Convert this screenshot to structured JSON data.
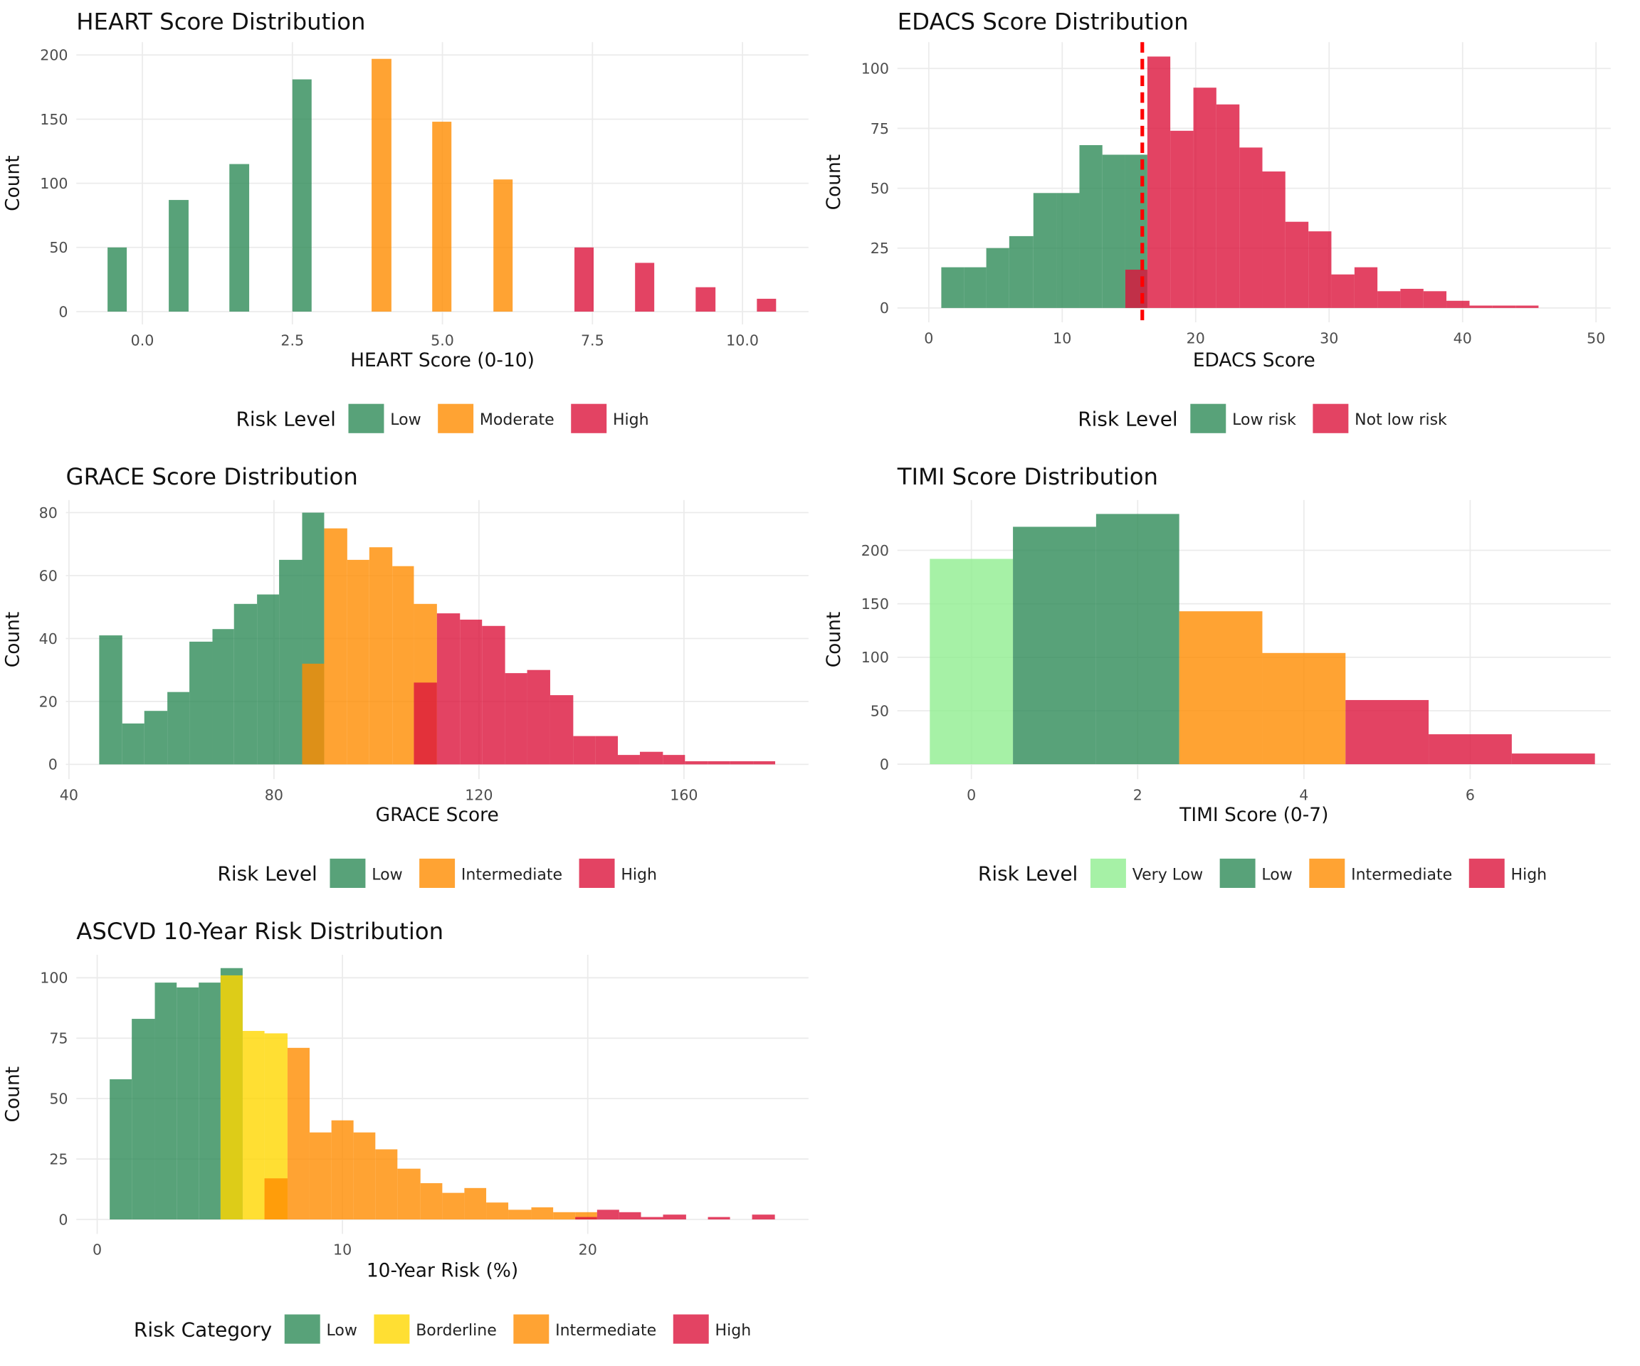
{
  "chart_data": [
    {
      "type": "histogram",
      "title": "HEART Score Distribution",
      "x_label": "HEART Score (0-10)",
      "y_label": "Count",
      "legend_title": "Risk Level",
      "legend": "bottom",
      "grid": true,
      "alpha": 0.8,
      "xlim": [
        -1.1,
        11.1
      ],
      "ylim": [
        -10,
        210
      ],
      "xticks": [
        {
          "value": 0,
          "label": "0.0"
        },
        2.5,
        {
          "value": 5,
          "label": "5.0"
        },
        7.5,
        {
          "value": 10,
          "label": "10.0"
        }
      ],
      "yticks": [
        0,
        50,
        100,
        150,
        200
      ],
      "series": [
        {
          "name": "Low",
          "color": "#2E8B57",
          "bins": [
            -0.58,
            -0.26,
            0.44,
            0.77,
            1.45,
            1.78,
            2.5,
            2.82
          ],
          "values": [
            50,
            0,
            87,
            0,
            115,
            0,
            181
          ]
        },
        {
          "name": "Moderate",
          "color": "#FF8C00",
          "bins": [
            3.82,
            4.15,
            4.83,
            5.15,
            5.85,
            6.17
          ],
          "values": [
            197,
            0,
            148,
            0,
            103
          ]
        },
        {
          "name": "High",
          "color": "#DC143C",
          "bins": [
            7.2,
            7.52,
            8.21,
            8.53,
            9.22,
            9.55,
            10.24,
            10.56
          ],
          "values": [
            50,
            0,
            38,
            0,
            19,
            0,
            10
          ]
        }
      ]
    },
    {
      "type": "histogram",
      "title": "EDACS Score Distribution",
      "x_label": "EDACS Score",
      "y_label": "Count",
      "legend_title": "Risk Level",
      "legend": "bottom",
      "grid": true,
      "alpha": 0.8,
      "xlim": [
        -2.35,
        51.1
      ],
      "ylim": [
        -6,
        111
      ],
      "xticks": [
        0,
        10,
        20,
        30,
        40,
        50
      ],
      "yticks": [
        0,
        25,
        50,
        75,
        100
      ],
      "vline": 16,
      "vline_color": "#FF0000",
      "series": [
        {
          "name": "Low risk",
          "color": "#2E8B57",
          "bins": [
            0.94,
            2.66,
            4.31,
            6.03,
            7.84,
            9.56,
            11.29,
            13.01,
            14.73,
            16.38
          ],
          "values": [
            17,
            17,
            25,
            30,
            48,
            48,
            68,
            64,
            64
          ]
        },
        {
          "name": "Not low risk",
          "color": "#DC143C",
          "bins": [
            14.73,
            16.38,
            18.1,
            19.83,
            21.55,
            23.28,
            25.0,
            26.72,
            28.45,
            30.17,
            31.9,
            33.62,
            35.34,
            37.07,
            38.79,
            40.52,
            42.24,
            43.97,
            45.69
          ],
          "values": [
            16,
            105,
            74,
            92,
            85,
            67,
            57,
            36,
            32,
            14,
            17,
            7,
            8,
            7,
            3,
            1,
            1,
            1
          ]
        }
      ]
    },
    {
      "type": "histogram",
      "title": "GRACE Score Distribution",
      "x_label": "GRACE Score",
      "y_label": "Count",
      "legend_title": "Risk Level",
      "legend": "bottom",
      "grid": true,
      "alpha": 0.8,
      "xlim": [
        39.4,
        184.3
      ],
      "ylim": [
        -4.7,
        84
      ],
      "xticks": [
        40,
        80,
        120,
        160
      ],
      "yticks": [
        0,
        20,
        40,
        60,
        80
      ],
      "series": [
        {
          "name": "Low",
          "color": "#2E8B57",
          "bins": [
            45.9,
            50.4,
            54.7,
            59.2,
            63.5,
            68.0,
            72.2,
            76.7,
            81.0,
            85.5,
            89.8
          ],
          "values": [
            41,
            13,
            17,
            23,
            39,
            43,
            51,
            54,
            65,
            80
          ]
        },
        {
          "name": "Intermediate",
          "color": "#FF8C00",
          "bins": [
            85.5,
            89.8,
            94.3,
            98.6,
            103.1,
            107.3,
            111.8
          ],
          "values": [
            32,
            75,
            65,
            69,
            63,
            51
          ]
        },
        {
          "name": "High",
          "color": "#DC143C",
          "bins": [
            107.3,
            111.8,
            116.3,
            120.6,
            125.1,
            129.4,
            133.9,
            138.4,
            142.7,
            147.1,
            151.4,
            155.9,
            160.2,
            164.7,
            169.0,
            173.5,
            177.8
          ],
          "values": [
            26,
            48,
            46,
            44,
            29,
            30,
            22,
            9,
            9,
            3,
            4,
            3,
            1,
            1,
            1,
            1
          ]
        }
      ]
    },
    {
      "type": "histogram",
      "title": "TIMI Score Distribution",
      "x_label": "TIMI Score (0-7)",
      "y_label": "Count",
      "legend_title": "Risk Level",
      "legend": "bottom",
      "grid": true,
      "alpha": 0.8,
      "xlim": [
        -0.89,
        7.69
      ],
      "ylim": [
        -14,
        247
      ],
      "xticks": [
        0,
        2,
        4,
        6
      ],
      "yticks": [
        0,
        50,
        100,
        150,
        200
      ],
      "series": [
        {
          "name": "Very Low",
          "color": "#90EE90",
          "bins": [
            -0.5,
            0.5
          ],
          "values": [
            192
          ]
        },
        {
          "name": "Low",
          "color": "#2E8B57",
          "bins": [
            0.5,
            1.5,
            2.5
          ],
          "values": [
            222,
            234
          ]
        },
        {
          "name": "Intermediate",
          "color": "#FF8C00",
          "bins": [
            2.5,
            3.5,
            4.5
          ],
          "values": [
            143,
            104
          ]
        },
        {
          "name": "High",
          "color": "#DC143C",
          "bins": [
            4.5,
            5.5,
            6.5,
            7.5
          ],
          "values": [
            60,
            28,
            10
          ]
        }
      ]
    },
    {
      "type": "histogram",
      "title": "ASCVD 10-Year Risk Distribution",
      "x_label": "10-Year Risk (%)",
      "y_label": "Count",
      "legend_title": "Risk Category",
      "legend": "bottom",
      "grid": true,
      "alpha": 0.8,
      "xlim": [
        -0.85,
        29.0
      ],
      "ylim": [
        -6,
        109.5
      ],
      "xticks": [
        0,
        10,
        20
      ],
      "yticks": [
        0,
        25,
        50,
        75,
        100
      ],
      "series": [
        {
          "name": "Low",
          "color": "#2E8B57",
          "bins": [
            0.51,
            1.41,
            2.35,
            3.24,
            4.14,
            5.03,
            5.93
          ],
          "values": [
            58,
            83,
            98,
            96,
            98,
            104
          ]
        },
        {
          "name": "Borderline",
          "color": "#FFD700",
          "bins": [
            5.03,
            5.93,
            6.82,
            7.76
          ],
          "values": [
            101,
            78,
            77
          ]
        },
        {
          "name": "Intermediate",
          "color": "#FF8C00",
          "bins": [
            6.82,
            7.76,
            8.66,
            9.55,
            10.45,
            11.34,
            12.24,
            13.18,
            14.07,
            14.97,
            15.86,
            16.76,
            17.7,
            18.59,
            19.49,
            20.38
          ],
          "values": [
            17,
            71,
            36,
            41,
            36,
            29,
            21,
            15,
            11,
            13,
            7,
            4,
            5,
            3,
            3
          ]
        },
        {
          "name": "High",
          "color": "#DC143C",
          "bins": [
            19.49,
            20.38,
            21.28,
            22.17,
            23.07,
            24.01,
            24.9,
            25.8,
            26.7,
            27.63
          ],
          "values": [
            1,
            4,
            3,
            1,
            2,
            0,
            1,
            0,
            2
          ]
        }
      ]
    }
  ]
}
